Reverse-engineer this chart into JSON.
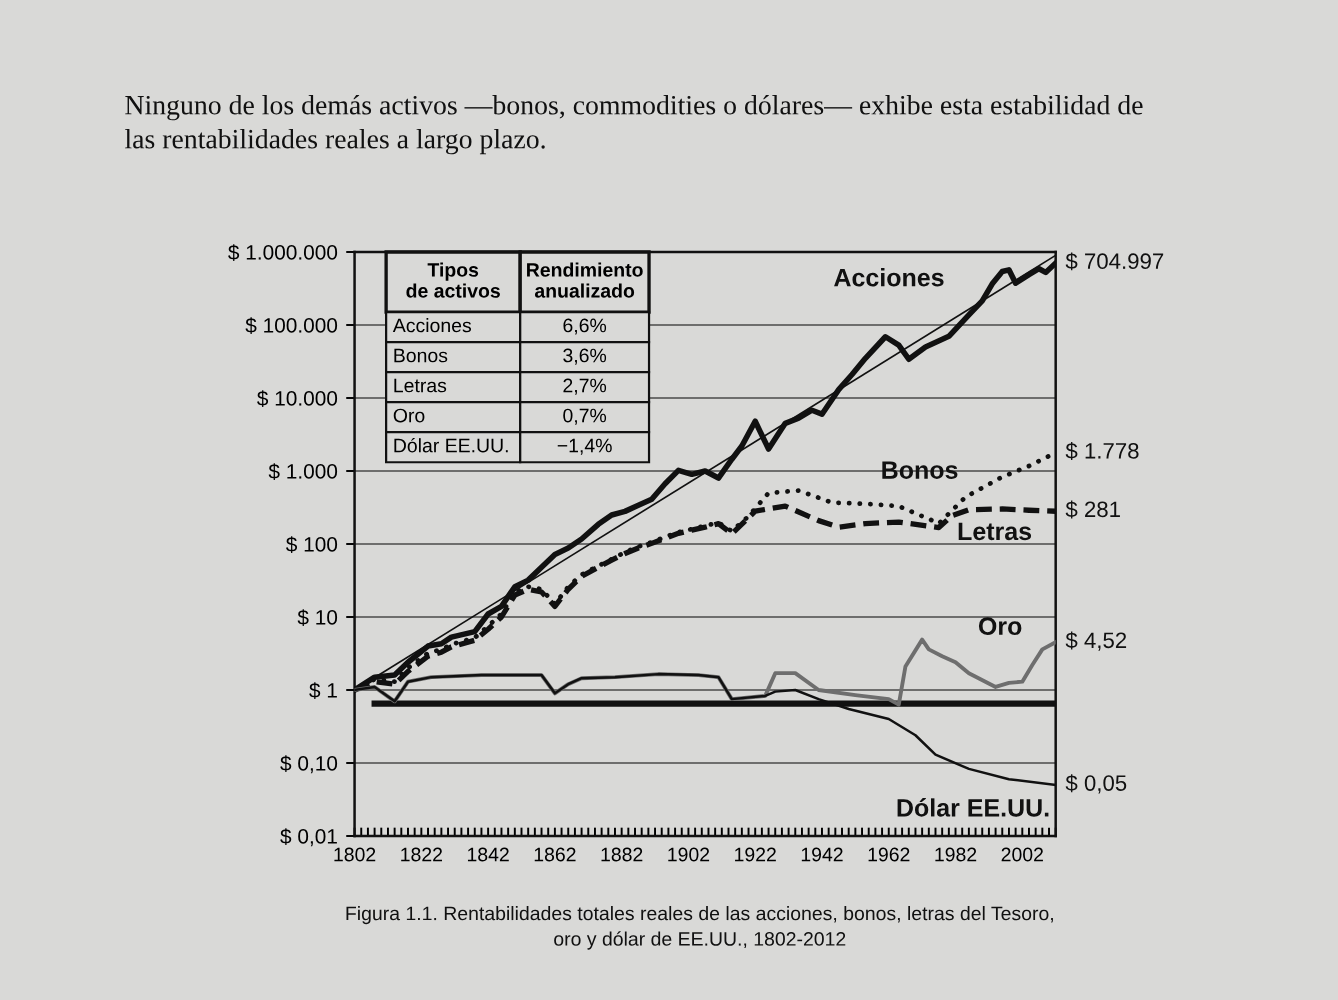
{
  "chart_data": {
    "type": "line",
    "title": "Figura 1.1. Rentabilidades totales reales de las acciones, bonos, letras del Tesoro, oro y dólar de EE.UU., 1802-2012",
    "annotations": [
      "Ninguno de los demás activos —bonos, commodities o dólares— exhibe esta estabilidad de las rentabilidades reales a largo plazo.",
      "Tipos de activos",
      "Rendimiento anualizado",
      "Acciones",
      "6,6%",
      "Bonos",
      "3,6%",
      "Letras",
      "2,7%",
      "Oro",
      "0,7%",
      "Dólar EE.UU.",
      "−1,4%"
    ],
    "log": "y",
    "grid": "y",
    "xlim": [
      1802,
      2012
    ],
    "ylim": [
      0.01,
      1000000
    ],
    "xticks": [
      1802,
      {
        "value": 1804,
        "label": null
      },
      {
        "value": 1806,
        "label": null
      },
      {
        "value": 1808,
        "label": null
      },
      {
        "value": 1810,
        "label": null
      },
      {
        "value": 1812,
        "label": null
      },
      {
        "value": 1814,
        "label": null
      },
      {
        "value": 1816,
        "label": null
      },
      {
        "value": 1818,
        "label": null
      },
      {
        "value": 1820,
        "label": null
      },
      1822,
      {
        "value": 1824,
        "label": null
      },
      {
        "value": 1826,
        "label": null
      },
      {
        "value": 1828,
        "label": null
      },
      {
        "value": 1830,
        "label": null
      },
      {
        "value": 1832,
        "label": null
      },
      {
        "value": 1834,
        "label": null
      },
      {
        "value": 1836,
        "label": null
      },
      {
        "value": 1838,
        "label": null
      },
      {
        "value": 1840,
        "label": null
      },
      1842,
      {
        "value": 1844,
        "label": null
      },
      {
        "value": 1846,
        "label": null
      },
      {
        "value": 1848,
        "label": null
      },
      {
        "value": 1850,
        "label": null
      },
      {
        "value": 1852,
        "label": null
      },
      {
        "value": 1854,
        "label": null
      },
      {
        "value": 1856,
        "label": null
      },
      {
        "value": 1858,
        "label": null
      },
      {
        "value": 1860,
        "label": null
      },
      1862,
      {
        "value": 1864,
        "label": null
      },
      {
        "value": 1866,
        "label": null
      },
      {
        "value": 1868,
        "label": null
      },
      {
        "value": 1870,
        "label": null
      },
      {
        "value": 1872,
        "label": null
      },
      {
        "value": 1874,
        "label": null
      },
      {
        "value": 1876,
        "label": null
      },
      {
        "value": 1878,
        "label": null
      },
      {
        "value": 1880,
        "label": null
      },
      1882,
      {
        "value": 1884,
        "label": null
      },
      {
        "value": 1886,
        "label": null
      },
      {
        "value": 1888,
        "label": null
      },
      {
        "value": 1890,
        "label": null
      },
      {
        "value": 1892,
        "label": null
      },
      {
        "value": 1894,
        "label": null
      },
      {
        "value": 1896,
        "label": null
      },
      {
        "value": 1898,
        "label": null
      },
      {
        "value": 1900,
        "label": null
      },
      1902,
      {
        "value": 1904,
        "label": null
      },
      {
        "value": 1906,
        "label": null
      },
      {
        "value": 1908,
        "label": null
      },
      {
        "value": 1910,
        "label": null
      },
      {
        "value": 1912,
        "label": null
      },
      {
        "value": 1914,
        "label": null
      },
      {
        "value": 1916,
        "label": null
      },
      {
        "value": 1918,
        "label": null
      },
      {
        "value": 1920,
        "label": null
      },
      1922,
      {
        "value": 1924,
        "label": null
      },
      {
        "value": 1926,
        "label": null
      },
      {
        "value": 1928,
        "label": null
      },
      {
        "value": 1930,
        "label": null
      },
      {
        "value": 1932,
        "label": null
      },
      {
        "value": 1934,
        "label": null
      },
      {
        "value": 1936,
        "label": null
      },
      {
        "value": 1938,
        "label": null
      },
      {
        "value": 1940,
        "label": null
      },
      1942,
      {
        "value": 1944,
        "label": null
      },
      {
        "value": 1946,
        "label": null
      },
      {
        "value": 1948,
        "label": null
      },
      {
        "value": 1950,
        "label": null
      },
      {
        "value": 1952,
        "label": null
      },
      {
        "value": 1954,
        "label": null
      },
      {
        "value": 1956,
        "label": null
      },
      {
        "value": 1958,
        "label": null
      },
      {
        "value": 1960,
        "label": null
      },
      1962,
      {
        "value": 1964,
        "label": null
      },
      {
        "value": 1966,
        "label": null
      },
      {
        "value": 1968,
        "label": null
      },
      {
        "value": 1970,
        "label": null
      },
      {
        "value": 1972,
        "label": null
      },
      {
        "value": 1974,
        "label": null
      },
      {
        "value": 1976,
        "label": null
      },
      {
        "value": 1978,
        "label": null
      },
      {
        "value": 1980,
        "label": null
      },
      1982,
      {
        "value": 1984,
        "label": null
      },
      {
        "value": 1986,
        "label": null
      },
      {
        "value": 1988,
        "label": null
      },
      {
        "value": 1990,
        "label": null
      },
      {
        "value": 1992,
        "label": null
      },
      {
        "value": 1994,
        "label": null
      },
      {
        "value": 1996,
        "label": null
      },
      {
        "value": 1998,
        "label": null
      },
      {
        "value": 2000,
        "label": null
      },
      2002,
      {
        "value": 2004,
        "label": null
      },
      {
        "value": 2006,
        "label": null
      },
      {
        "value": 2008,
        "label": null
      },
      {
        "value": 2010,
        "label": null
      },
      {
        "value": 2012,
        "label": null
      }
    ],
    "yticks": [
      {
        "value": 0.01,
        "label": "$ 0,01"
      },
      {
        "value": 0.1,
        "label": "$ 0,10"
      },
      {
        "value": 1,
        "label": "$ 1"
      },
      {
        "value": 10,
        "label": "$ 10"
      },
      {
        "value": 100,
        "label": "$ 100"
      },
      {
        "value": 1000,
        "label": "$ 1.000"
      },
      {
        "value": 10000,
        "label": "$ 10.000"
      },
      {
        "value": 100000,
        "label": "$ 100.000"
      },
      {
        "value": 1000000,
        "label": "$ 1.000.000"
      }
    ],
    "series": [
      {
        "color": "#111111",
        "line_style": "solid",
        "x": [
          1802,
          2012
        ],
        "values": [
          1,
          900000
        ]
      },
      {
        "color": "#111111",
        "line_style": "solid",
        "x": [
          1808,
          2012
        ],
        "values": [
          0.65,
          0.65
        ]
      },
      {
        "name": "Acciones",
        "color": "#111111",
        "line_style": "solid",
        "x": [
          1802,
          1808,
          1814,
          1818,
          1824,
          1828,
          1831,
          1838,
          1842,
          1846,
          1850,
          1854,
          1858,
          1862,
          1866,
          1870,
          1875,
          1879,
          1883,
          1887,
          1891,
          1895,
          1899,
          1903,
          1907,
          1911,
          1915,
          1918,
          1922,
          1926,
          1931,
          1935,
          1939,
          1942,
          1947,
          1951,
          1955,
          1961,
          1965,
          1968,
          1973,
          1980,
          1986,
          1990,
          1993,
          1996,
          1998,
          2000,
          2004,
          2007,
          2009,
          2012
        ],
        "values": [
          1,
          1.5,
          1.6,
          2.4,
          4.0,
          4.3,
          5.3,
          6.3,
          11,
          14,
          26,
          32,
          48,
          72,
          88,
          117,
          186,
          250,
          280,
          340,
          410,
          670,
          1020,
          900,
          1000,
          800,
          1450,
          2200,
          4800,
          2000,
          4500,
          5300,
          6800,
          6000,
          13000,
          21000,
          35000,
          69000,
          53000,
          34000,
          50000,
          70000,
          138000,
          214000,
          367000,
          540000,
          570000,
          374000,
          490000,
          590000,
          525000,
          704997
        ],
        "value_labels": [
          null,
          null,
          null,
          null,
          null,
          null,
          null,
          null,
          null,
          null,
          null,
          null,
          null,
          null,
          null,
          null,
          null,
          null,
          null,
          null,
          null,
          null,
          null,
          null,
          null,
          null,
          null,
          null,
          null,
          null,
          null,
          null,
          null,
          null,
          null,
          null,
          null,
          null,
          null,
          null,
          null,
          null,
          null,
          null,
          null,
          null,
          null,
          null,
          null,
          null,
          null,
          "$ 704.997"
        ]
      },
      {
        "name": "Bonos",
        "color": "#111111",
        "line_style": "dotted",
        "x": [
          1802,
          1808,
          1814,
          1818,
          1824,
          1828,
          1831,
          1838,
          1842,
          1846,
          1850,
          1854,
          1858,
          1862,
          1866,
          1870,
          1875,
          1879,
          1883,
          1887,
          1891,
          1895,
          1899,
          1903,
          1907,
          1911,
          1915,
          1920,
          1926,
          1935,
          1945,
          1955,
          1965,
          1975,
          1977,
          1985,
          1996,
          2004,
          2012
        ],
        "values": [
          1,
          1.4,
          1.3,
          2.0,
          3.2,
          3.6,
          4.2,
          5.2,
          7.5,
          11,
          22,
          26,
          24,
          15,
          26,
          38,
          50,
          62,
          77,
          92,
          106,
          125,
          145,
          160,
          178,
          196,
          150,
          240,
          500,
          540,
          370,
          355,
          330,
          210,
          190,
          440,
          830,
          1170,
          1778
        ],
        "value_labels": [
          null,
          null,
          null,
          null,
          null,
          null,
          null,
          null,
          null,
          null,
          null,
          null,
          null,
          null,
          null,
          null,
          null,
          null,
          null,
          null,
          null,
          null,
          null,
          null,
          null,
          null,
          null,
          null,
          null,
          null,
          null,
          null,
          null,
          null,
          null,
          null,
          null,
          null,
          "$ 1.778"
        ]
      },
      {
        "name": "Letras",
        "color": "#111111",
        "line_style": "dashed",
        "x": [
          1802,
          1808,
          1814,
          1818,
          1824,
          1828,
          1831,
          1838,
          1842,
          1846,
          1850,
          1854,
          1858,
          1862,
          1866,
          1870,
          1875,
          1879,
          1883,
          1887,
          1891,
          1895,
          1899,
          1903,
          1907,
          1911,
          1915,
          1922,
          1931,
          1941,
          1947,
          1955,
          1965,
          1977,
          1981,
          1986,
          1996,
          2004,
          2012
        ],
        "values": [
          1,
          1.3,
          1.2,
          1.8,
          2.9,
          3.3,
          3.9,
          4.8,
          6.8,
          10,
          20,
          24,
          22,
          14,
          24,
          36,
          48,
          60,
          74,
          88,
          102,
          120,
          140,
          155,
          170,
          190,
          138,
          282,
          331,
          209,
          170,
          190,
          200,
          168,
          245,
          295,
          302,
          290,
          281
        ],
        "value_labels": [
          null,
          null,
          null,
          null,
          null,
          null,
          null,
          null,
          null,
          null,
          null,
          null,
          null,
          null,
          null,
          null,
          null,
          null,
          null,
          null,
          null,
          null,
          null,
          null,
          null,
          null,
          null,
          null,
          null,
          null,
          null,
          null,
          null,
          null,
          null,
          null,
          null,
          null,
          "$ 281"
        ]
      },
      {
        "name": "Oro",
        "color": "#6e6e6e",
        "line_style": "solid",
        "x": [
          1802,
          1808,
          1814,
          1818,
          1825,
          1840,
          1850,
          1858,
          1862,
          1866,
          1870,
          1880,
          1893,
          1905,
          1911,
          1915,
          1925,
          1928,
          1934,
          1941,
          1952,
          1962,
          1965,
          1967,
          1972,
          1974,
          1978,
          1982,
          1986,
          1994,
          1998,
          2002,
          2005,
          2008,
          2012
        ],
        "values": [
          1,
          1.1,
          0.7,
          1.3,
          1.5,
          1.6,
          1.6,
          1.6,
          0.9,
          1.2,
          1.45,
          1.5,
          1.65,
          1.6,
          1.5,
          0.75,
          0.83,
          1.7,
          1.7,
          1.0,
          0.85,
          0.75,
          0.63,
          2.1,
          4.9,
          3.6,
          2.9,
          2.4,
          1.7,
          1.1,
          1.25,
          1.3,
          2.2,
          3.6,
          4.52
        ],
        "value_labels": [
          null,
          null,
          null,
          null,
          null,
          null,
          null,
          null,
          null,
          null,
          null,
          null,
          null,
          null,
          null,
          null,
          null,
          null,
          null,
          null,
          null,
          null,
          null,
          null,
          null,
          null,
          null,
          null,
          null,
          null,
          null,
          null,
          null,
          null,
          "$ 4,52"
        ]
      },
      {
        "name": "Dólar EE.UU.",
        "color": "#111111",
        "line_style": "solid",
        "x": [
          1802,
          1808,
          1814,
          1818,
          1825,
          1840,
          1850,
          1858,
          1862,
          1866,
          1870,
          1880,
          1893,
          1905,
          1911,
          1915,
          1925,
          1928,
          1934,
          1941,
          1950,
          1962,
          1970,
          1976,
          1986,
          1998,
          2012
        ],
        "values": [
          1,
          1.1,
          0.7,
          1.3,
          1.5,
          1.6,
          1.6,
          1.6,
          0.9,
          1.2,
          1.45,
          1.5,
          1.65,
          1.6,
          1.5,
          0.75,
          0.83,
          0.95,
          1.0,
          0.75,
          0.55,
          0.4,
          0.24,
          0.13,
          0.083,
          0.06,
          0.05
        ],
        "value_labels": [
          null,
          null,
          null,
          null,
          null,
          null,
          null,
          null,
          null,
          null,
          null,
          null,
          null,
          null,
          null,
          null,
          null,
          null,
          null,
          null,
          null,
          null,
          null,
          null,
          null,
          null,
          "$ 0,05"
        ]
      }
    ]
  }
}
